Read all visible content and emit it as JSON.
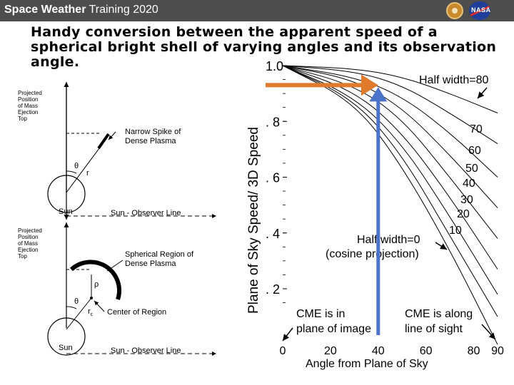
{
  "header": {
    "title_bold": "Space Weather",
    "title_rest": " Training 2020",
    "logo_left": "circular-seal-icon",
    "logo_right": "nasa-meatball-icon",
    "logo_right_text": "NASA"
  },
  "heading": "Handy conversion between the apparent speed of a spherical bright shell of varying angles and its observation angle.",
  "diagrams": {
    "top": {
      "proj_label": [
        "Projected",
        "Position",
        "of Mass",
        "Ejection",
        "Top"
      ],
      "spike_label": [
        "Narrow Spike of",
        "Dense Plasma"
      ],
      "theta": "θ",
      "r": "r",
      "sun": "Sun",
      "observer_line": "Sun - Observer Line"
    },
    "bottom": {
      "proj_label": [
        "Projected",
        "Position",
        "of Mass",
        "Ejection",
        "Top"
      ],
      "region_label": [
        "Spherical Region of",
        "Dense Plasma"
      ],
      "rho": "ρ",
      "theta": "θ",
      "rc": "r",
      "rc_sub": "c",
      "center": "Center of Region",
      "sun": "Sun",
      "observer_line": "Sun - Observer Line"
    }
  },
  "chart_data": {
    "type": "line",
    "xlabel": "Angle from Plane of Sky",
    "ylabel": "Plane of Sky Speed/ 3D Speed",
    "xlim": [
      0,
      90
    ],
    "ylim": [
      0.1,
      1.0
    ],
    "x_ticks": [
      "0",
      "20",
      "40",
      "60",
      "80",
      "90"
    ],
    "x_tick_values": [
      0,
      20,
      40,
      60,
      80,
      90
    ],
    "y_ticks": [
      "1.0",
      ". 8",
      ". 6",
      ". 4",
      ". 2"
    ],
    "y_tick_values": [
      1.0,
      0.8,
      0.6,
      0.4,
      0.2
    ],
    "series": [
      {
        "name": "Half width=80",
        "x": [
          0,
          30,
          50,
          70,
          90
        ],
        "y": [
          1.0,
          0.99,
          0.96,
          0.9,
          0.83
        ]
      },
      {
        "name": "70",
        "x": [
          0,
          30,
          50,
          70,
          90
        ],
        "y": [
          1.0,
          0.98,
          0.93,
          0.83,
          0.72
        ]
      },
      {
        "name": "60",
        "x": [
          0,
          30,
          50,
          70,
          90
        ],
        "y": [
          1.0,
          0.96,
          0.89,
          0.76,
          0.6
        ]
      },
      {
        "name": "50",
        "x": [
          0,
          30,
          50,
          70,
          90
        ],
        "y": [
          1.0,
          0.95,
          0.85,
          0.68,
          0.49
        ]
      },
      {
        "name": "40",
        "x": [
          0,
          30,
          50,
          70,
          90
        ],
        "y": [
          1.0,
          0.93,
          0.81,
          0.6,
          0.38
        ]
      },
      {
        "name": "30",
        "x": [
          0,
          30,
          50,
          70,
          90
        ],
        "y": [
          1.0,
          0.91,
          0.76,
          0.53,
          0.27
        ]
      },
      {
        "name": "20",
        "x": [
          0,
          30,
          50,
          70,
          90
        ],
        "y": [
          1.0,
          0.89,
          0.72,
          0.46,
          0.18
        ]
      },
      {
        "name": "10",
        "x": [
          0,
          30,
          50,
          70,
          90
        ],
        "y": [
          1.0,
          0.88,
          0.68,
          0.39,
          0.1
        ]
      },
      {
        "name": "Half width=0 (cosine projection)",
        "x": [
          0,
          30,
          50,
          70,
          90
        ],
        "y": [
          1.0,
          0.87,
          0.64,
          0.34,
          0.0
        ]
      }
    ],
    "annotations": {
      "half_width_top": "Half width=80",
      "curve_labels": [
        "70",
        "60",
        "50",
        "40",
        "30",
        "20",
        "10"
      ],
      "half_width_zero_line1": "Half width=0",
      "half_width_zero_line2": "(cosine projection)",
      "plane_line1": "CME is in",
      "plane_line2": "plane of image",
      "sight_line1": "CME is along",
      "sight_line2": "line of sight"
    },
    "highlight": {
      "x": 40,
      "y": 0.93,
      "horizontal_color": "#e07b2e",
      "vertical_color": "#4a73c9"
    }
  }
}
